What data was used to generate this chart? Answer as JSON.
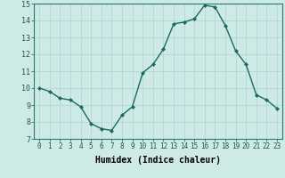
{
  "x": [
    0,
    1,
    2,
    3,
    4,
    5,
    6,
    7,
    8,
    9,
    10,
    11,
    12,
    13,
    14,
    15,
    16,
    17,
    18,
    19,
    20,
    21,
    22,
    23
  ],
  "y": [
    10.0,
    9.8,
    9.4,
    9.3,
    8.9,
    7.9,
    7.6,
    7.5,
    8.4,
    8.9,
    10.9,
    11.4,
    12.3,
    13.8,
    13.9,
    14.1,
    14.9,
    14.8,
    13.7,
    12.2,
    11.4,
    9.6,
    9.3,
    8.8
  ],
  "line_color": "#1a6b5a",
  "marker": "D",
  "marker_size": 2.0,
  "bg_color": "#ceeae7",
  "grid_color": "#afd4d0",
  "xlabel": "Humidex (Indice chaleur)",
  "xlabel_fontsize": 7,
  "xlim": [
    -0.5,
    23.5
  ],
  "ylim": [
    7,
    15
  ],
  "yticks": [
    7,
    8,
    9,
    10,
    11,
    12,
    13,
    14,
    15
  ],
  "xticks": [
    0,
    1,
    2,
    3,
    4,
    5,
    6,
    7,
    8,
    9,
    10,
    11,
    12,
    13,
    14,
    15,
    16,
    17,
    18,
    19,
    20,
    21,
    22,
    23
  ],
  "tick_fontsize": 5.5,
  "ytick_fontsize": 6,
  "line_width": 1.0
}
